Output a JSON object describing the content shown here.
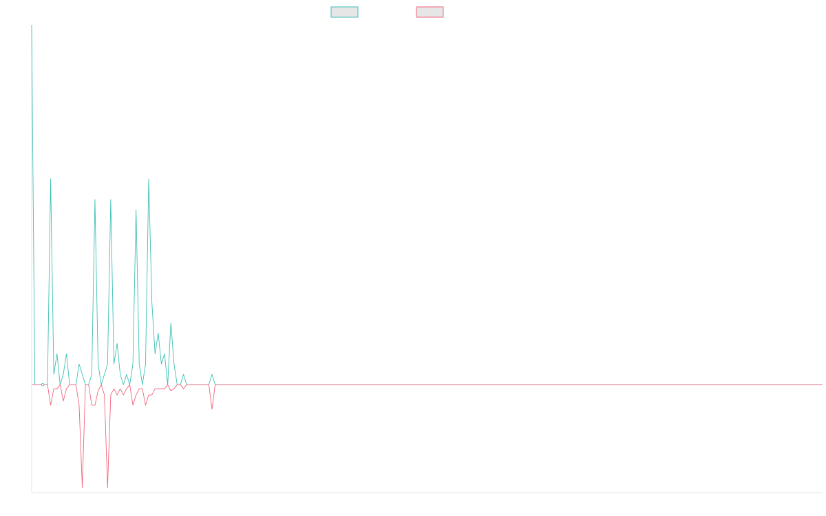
{
  "chart_data": {
    "type": "line",
    "title": "",
    "xlabel": "",
    "ylabel": "",
    "grid": false,
    "legend_placement": "top-center",
    "xlim": [
      0,
      250
    ],
    "ylim": [
      -0.525,
      1.75
    ],
    "x_step": 1,
    "series": [
      {
        "color": "#3dbfb4",
        "legend_swatch_fill": "#e6e6e6",
        "legend_swatch_border": "#3dbfb4",
        "points": [
          [
            0,
            1.75
          ],
          [
            1,
            0.0
          ],
          [
            3,
            0.0
          ],
          [
            4,
            0.0
          ],
          [
            5,
            0.0
          ],
          [
            6,
            1.0
          ],
          [
            7,
            0.05
          ],
          [
            8,
            0.15
          ],
          [
            9,
            0.0
          ],
          [
            10,
            0.05
          ],
          [
            11,
            0.15
          ],
          [
            12,
            0.0
          ],
          [
            14,
            0.0
          ],
          [
            15,
            0.1
          ],
          [
            16,
            0.05
          ],
          [
            17,
            0.0
          ],
          [
            18,
            0.0
          ],
          [
            19,
            0.05
          ],
          [
            20,
            0.9
          ],
          [
            21,
            0.1
          ],
          [
            22,
            0.0
          ],
          [
            23,
            0.05
          ],
          [
            24,
            0.1
          ],
          [
            25,
            0.9
          ],
          [
            26,
            0.1
          ],
          [
            27,
            0.2
          ],
          [
            28,
            0.05
          ],
          [
            29,
            0.0
          ],
          [
            30,
            0.05
          ],
          [
            31,
            0.0
          ],
          [
            32,
            0.1
          ],
          [
            33,
            0.85
          ],
          [
            34,
            0.1
          ],
          [
            35,
            0.0
          ],
          [
            36,
            0.1
          ],
          [
            37,
            1.0
          ],
          [
            38,
            0.4
          ],
          [
            39,
            0.15
          ],
          [
            40,
            0.25
          ],
          [
            41,
            0.1
          ],
          [
            42,
            0.15
          ],
          [
            43,
            0.0
          ],
          [
            44,
            0.3
          ],
          [
            45,
            0.1
          ],
          [
            46,
            0.0
          ],
          [
            47,
            0.0
          ],
          [
            48,
            0.05
          ],
          [
            49,
            0.0
          ],
          [
            56,
            0.0
          ],
          [
            57,
            0.05
          ],
          [
            58,
            0.0
          ],
          [
            59,
            0.0
          ],
          [
            60,
            0.0
          ],
          [
            250,
            0.0
          ]
        ]
      },
      {
        "color": "#f0647c",
        "legend_swatch_fill": "#e6e6e6",
        "legend_swatch_border": "#f0647c",
        "points": [
          [
            0,
            0.0
          ],
          [
            1,
            0.0
          ],
          [
            3,
            0.0
          ],
          [
            4,
            0.0
          ],
          [
            5,
            0.0
          ],
          [
            6,
            -0.1
          ],
          [
            7,
            -0.02
          ],
          [
            8,
            -0.02
          ],
          [
            9,
            0.0
          ],
          [
            10,
            -0.08
          ],
          [
            11,
            -0.02
          ],
          [
            12,
            0.0
          ],
          [
            14,
            0.0
          ],
          [
            15,
            -0.1
          ],
          [
            16,
            -0.5
          ],
          [
            17,
            0.0
          ],
          [
            18,
            0.0
          ],
          [
            19,
            -0.1
          ],
          [
            20,
            -0.1
          ],
          [
            21,
            -0.03
          ],
          [
            22,
            0.0
          ],
          [
            23,
            -0.05
          ],
          [
            24,
            -0.5
          ],
          [
            25,
            -0.05
          ],
          [
            26,
            -0.02
          ],
          [
            27,
            -0.05
          ],
          [
            28,
            -0.02
          ],
          [
            29,
            -0.05
          ],
          [
            30,
            -0.02
          ],
          [
            31,
            0.0
          ],
          [
            32,
            -0.1
          ],
          [
            33,
            -0.05
          ],
          [
            34,
            -0.02
          ],
          [
            35,
            -0.02
          ],
          [
            36,
            -0.1
          ],
          [
            37,
            -0.05
          ],
          [
            38,
            -0.05
          ],
          [
            39,
            -0.02
          ],
          [
            40,
            -0.02
          ],
          [
            41,
            -0.02
          ],
          [
            42,
            -0.02
          ],
          [
            43,
            0.0
          ],
          [
            44,
            -0.03
          ],
          [
            45,
            -0.02
          ],
          [
            46,
            0.0
          ],
          [
            47,
            0.0
          ],
          [
            48,
            -0.02
          ],
          [
            49,
            0.0
          ],
          [
            56,
            0.0
          ],
          [
            57,
            -0.12
          ],
          [
            58,
            0.0
          ],
          [
            59,
            0.0
          ],
          [
            60,
            0.0
          ],
          [
            250,
            0.0
          ]
        ]
      }
    ]
  }
}
